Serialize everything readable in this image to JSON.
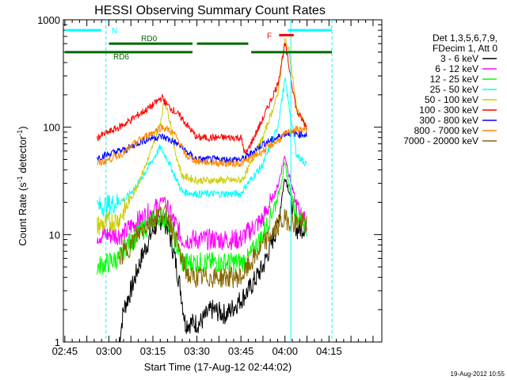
{
  "chart_data": {
    "type": "line",
    "title": "HESSI Observing Summary Count Rates",
    "xlabel": "Start Time (17-Aug-12 02:44:02)",
    "ylabel_main": "Count Rate (s",
    "ylabel_sup1": "-1",
    "ylabel_mid": " detector",
    "ylabel_sup2": "-1",
    "ylabel_end": ")",
    "y_scale": "log",
    "xlim_minutes": [
      -1,
      216
    ],
    "ylim": [
      1,
      1000
    ],
    "x_ticks": [
      {
        "label": "02:45",
        "t": 0
      },
      {
        "label": "03:00",
        "t": 30
      },
      {
        "label": "03:15",
        "t": 60
      },
      {
        "label": "03:30",
        "t": 90
      },
      {
        "label": "03:45",
        "t": 120
      },
      {
        "label": "04:00",
        "t": 150
      },
      {
        "label": "04:15",
        "t": 180
      }
    ],
    "x_tick_unit_note": "t is minutes after 02:45 on the x axis",
    "y_ticks": [
      {
        "label": "1",
        "v": 1
      },
      {
        "label": "10",
        "v": 10
      },
      {
        "label": "100",
        "v": 100
      },
      {
        "label": "1000",
        "v": 1000
      }
    ],
    "legend_header": [
      "Det 1,3,5,6,7,9,",
      "FDecim 1, Att 0"
    ],
    "series": [
      {
        "name": "3 - 6 keV",
        "color": "#000000",
        "points": [
          [
            37,
            1
          ],
          [
            40,
            2
          ],
          [
            45,
            3
          ],
          [
            52,
            6
          ],
          [
            60,
            11
          ],
          [
            66,
            14
          ],
          [
            70,
            12
          ],
          [
            75,
            6
          ],
          [
            79,
            3
          ],
          [
            82,
            1.5
          ],
          [
            92,
            1.5
          ],
          [
            100,
            2
          ],
          [
            110,
            1.8
          ],
          [
            120,
            2.5
          ],
          [
            125,
            3
          ],
          [
            135,
            5
          ],
          [
            145,
            12
          ],
          [
            150,
            35
          ],
          [
            153,
            25
          ],
          [
            158,
            11
          ],
          [
            165,
            12
          ]
        ]
      },
      {
        "name": "6 - 12 keV",
        "color": "#ff00ff",
        "points": [
          [
            22,
            10
          ],
          [
            37,
            10
          ],
          [
            40,
            10
          ],
          [
            45,
            12
          ],
          [
            55,
            15
          ],
          [
            63,
            18
          ],
          [
            68,
            22
          ],
          [
            70,
            17
          ],
          [
            75,
            13
          ],
          [
            80,
            9
          ],
          [
            90,
            9
          ],
          [
            100,
            9
          ],
          [
            120,
            9
          ],
          [
            123,
            10
          ],
          [
            135,
            14
          ],
          [
            145,
            28
          ],
          [
            150,
            55
          ],
          [
            153,
            35
          ],
          [
            158,
            18
          ],
          [
            165,
            12
          ]
        ]
      },
      {
        "name": "12 - 25 keV",
        "color": "#00ff00",
        "points": [
          [
            22,
            5
          ],
          [
            37,
            6
          ],
          [
            42,
            8
          ],
          [
            50,
            10
          ],
          [
            58,
            13
          ],
          [
            65,
            15
          ],
          [
            70,
            14
          ],
          [
            75,
            9
          ],
          [
            80,
            5.5
          ],
          [
            90,
            5.5
          ],
          [
            110,
            5.5
          ],
          [
            120,
            5.5
          ],
          [
            125,
            6
          ],
          [
            135,
            10
          ],
          [
            145,
            22
          ],
          [
            150,
            45
          ],
          [
            153,
            28
          ],
          [
            158,
            15
          ],
          [
            165,
            12
          ]
        ]
      },
      {
        "name": "25 - 50 keV",
        "color": "#00ffff",
        "points": [
          [
            22,
            18
          ],
          [
            37,
            20
          ],
          [
            42,
            22
          ],
          [
            50,
            30
          ],
          [
            58,
            45
          ],
          [
            65,
            65
          ],
          [
            70,
            50
          ],
          [
            75,
            35
          ],
          [
            80,
            25
          ],
          [
            90,
            24
          ],
          [
            110,
            24
          ],
          [
            120,
            24
          ],
          [
            123,
            28
          ],
          [
            135,
            45
          ],
          [
            145,
            100
          ],
          [
            150,
            280
          ],
          [
            153,
            150
          ],
          [
            158,
            55
          ],
          [
            165,
            45
          ]
        ]
      },
      {
        "name": "50 - 100 keV",
        "color": "#cccc00",
        "points": [
          [
            22,
            12
          ],
          [
            37,
            14
          ],
          [
            42,
            18
          ],
          [
            50,
            30
          ],
          [
            58,
            55
          ],
          [
            65,
            110
          ],
          [
            68,
            180
          ],
          [
            72,
            110
          ],
          [
            75,
            60
          ],
          [
            80,
            35
          ],
          [
            90,
            32
          ],
          [
            110,
            32
          ],
          [
            120,
            32
          ],
          [
            123,
            36
          ],
          [
            135,
            80
          ],
          [
            145,
            200
          ],
          [
            150,
            650
          ],
          [
            153,
            500
          ],
          [
            158,
            150
          ],
          [
            165,
            95
          ]
        ]
      },
      {
        "name": "100 - 300 keV",
        "color": "#ff0000",
        "points": [
          [
            22,
            80
          ],
          [
            37,
            100
          ],
          [
            42,
            110
          ],
          [
            50,
            130
          ],
          [
            60,
            160
          ],
          [
            66,
            190
          ],
          [
            70,
            160
          ],
          [
            75,
            140
          ],
          [
            80,
            120
          ],
          [
            82,
            110
          ],
          [
            90,
            80
          ],
          [
            110,
            80
          ],
          [
            120,
            80
          ],
          [
            123,
            55
          ],
          [
            135,
            120
          ],
          [
            145,
            250
          ],
          [
            150,
            600
          ],
          [
            153,
            350
          ],
          [
            158,
            140
          ],
          [
            165,
            100
          ]
        ]
      },
      {
        "name": "300 - 800 keV",
        "color": "#0000ff",
        "points": [
          [
            22,
            52
          ],
          [
            37,
            60
          ],
          [
            42,
            62
          ],
          [
            50,
            72
          ],
          [
            60,
            80
          ],
          [
            66,
            82
          ],
          [
            70,
            78
          ],
          [
            75,
            72
          ],
          [
            80,
            65
          ],
          [
            82,
            60
          ],
          [
            90,
            50
          ],
          [
            110,
            50
          ],
          [
            120,
            50
          ],
          [
            123,
            52
          ],
          [
            135,
            70
          ],
          [
            145,
            80
          ],
          [
            150,
            88
          ],
          [
            155,
            88
          ],
          [
            165,
            85
          ]
        ]
      },
      {
        "name": "800 - 7000 keV",
        "color": "#ff8800",
        "points": [
          [
            22,
            45
          ],
          [
            37,
            55
          ],
          [
            42,
            60
          ],
          [
            50,
            75
          ],
          [
            60,
            90
          ],
          [
            66,
            100
          ],
          [
            70,
            96
          ],
          [
            75,
            85
          ],
          [
            80,
            65
          ],
          [
            82,
            55
          ],
          [
            90,
            48
          ],
          [
            110,
            46
          ],
          [
            120,
            46
          ],
          [
            125,
            50
          ],
          [
            135,
            60
          ],
          [
            145,
            75
          ],
          [
            150,
            85
          ],
          [
            155,
            95
          ],
          [
            165,
            95
          ]
        ]
      },
      {
        "name": "7000 - 20000 keV",
        "color": "#886600",
        "points": [
          [
            37,
            6
          ],
          [
            45,
            8
          ],
          [
            52,
            11
          ],
          [
            60,
            14
          ],
          [
            66,
            16
          ],
          [
            70,
            15
          ],
          [
            75,
            10
          ],
          [
            80,
            5.5
          ],
          [
            85,
            4
          ],
          [
            100,
            4
          ],
          [
            120,
            4
          ],
          [
            125,
            5
          ],
          [
            135,
            8
          ],
          [
            145,
            12
          ],
          [
            150,
            14
          ],
          [
            155,
            13
          ],
          [
            165,
            13
          ]
        ]
      }
    ],
    "annotations": [
      {
        "label": "N",
        "color": "#00ffff",
        "y": 800,
        "segments": [
          [
            0,
            25
          ],
          [
            152,
            182
          ]
        ]
      },
      {
        "label": "RD0",
        "color": "#006600",
        "y": 600,
        "segments": [
          [
            30,
            87
          ],
          [
            90,
            125
          ]
        ]
      },
      {
        "label": "RD6",
        "color": "#006600",
        "y": 500,
        "segments": [
          [
            0,
            87
          ],
          [
            127,
            182
          ]
        ]
      },
      {
        "label": "F",
        "color": "#ff0000",
        "y": 720,
        "segments": [
          [
            146,
            156
          ]
        ]
      }
    ],
    "vertical_lines": [
      {
        "t": 28,
        "color": "#00ffff",
        "dashed": true
      },
      {
        "t": 154,
        "color": "#00ffff",
        "dashed": false
      },
      {
        "t": 182,
        "color": "#00ffff",
        "dashed": true
      }
    ]
  },
  "footer_timestamp": "19-Aug-2012 10:55"
}
